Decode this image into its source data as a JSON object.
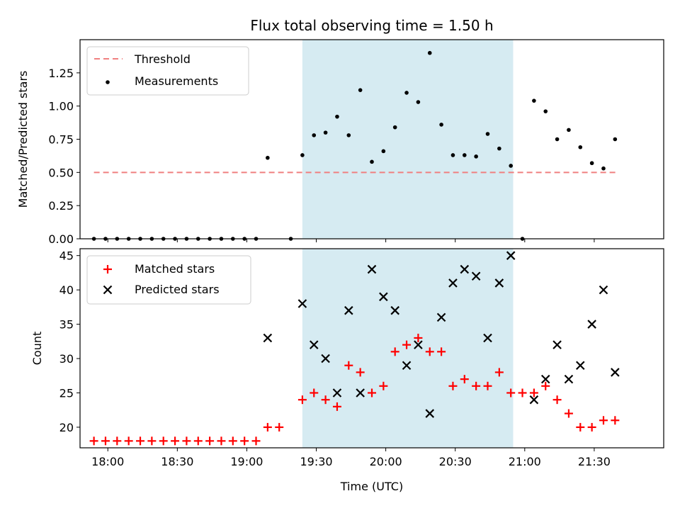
{
  "chart_data": [
    {
      "type": "scatter",
      "title": "Flux total observing time = 1.50 h",
      "xlabel": "",
      "ylabel": "Matched/Predicted stars",
      "xlim": [
        "17:48",
        "22:00"
      ],
      "ylim": [
        0,
        1.5
      ],
      "yticks": [
        "0.00",
        "0.25",
        "0.50",
        "0.75",
        "1.00",
        "1.25"
      ],
      "shaded_x": [
        "19:24",
        "20:55"
      ],
      "legend": "top-left",
      "threshold": {
        "name": "Threshold",
        "value": 0.5,
        "x": [
          "17:54",
          "21:40"
        ],
        "color": "#f08080"
      },
      "series": [
        {
          "name": "Measurements",
          "color": "#000000",
          "points": [
            [
              "17:54",
              0
            ],
            [
              "17:59",
              0
            ],
            [
              "18:04",
              0
            ],
            [
              "18:09",
              0
            ],
            [
              "18:14",
              0
            ],
            [
              "18:19",
              0
            ],
            [
              "18:24",
              0
            ],
            [
              "18:29",
              0
            ],
            [
              "18:34",
              0
            ],
            [
              "18:39",
              0
            ],
            [
              "18:44",
              0
            ],
            [
              "18:49",
              0
            ],
            [
              "18:54",
              0
            ],
            [
              "18:59",
              0
            ],
            [
              "19:04",
              0
            ],
            [
              "19:09",
              0.61
            ],
            [
              "19:19",
              0
            ],
            [
              "19:24",
              0.63
            ],
            [
              "19:29",
              0.78
            ],
            [
              "19:34",
              0.8
            ],
            [
              "19:39",
              0.92
            ],
            [
              "19:44",
              0.78
            ],
            [
              "19:49",
              1.12
            ],
            [
              "19:54",
              0.58
            ],
            [
              "19:59",
              0.66
            ],
            [
              "20:04",
              0.84
            ],
            [
              "20:09",
              1.1
            ],
            [
              "20:14",
              1.03
            ],
            [
              "20:19",
              1.4
            ],
            [
              "20:24",
              0.86
            ],
            [
              "20:29",
              0.63
            ],
            [
              "20:34",
              0.63
            ],
            [
              "20:39",
              0.62
            ],
            [
              "20:44",
              0.79
            ],
            [
              "20:49",
              0.68
            ],
            [
              "20:54",
              0.55
            ],
            [
              "20:59",
              0
            ],
            [
              "21:04",
              1.04
            ],
            [
              "21:09",
              0.96
            ],
            [
              "21:14",
              0.75
            ],
            [
              "21:19",
              0.82
            ],
            [
              "21:24",
              0.69
            ],
            [
              "21:29",
              0.57
            ],
            [
              "21:34",
              0.53
            ],
            [
              "21:39",
              0.75
            ]
          ]
        }
      ]
    },
    {
      "type": "scatter",
      "title": "",
      "xlabel": "Time (UTC)",
      "ylabel": "Count",
      "xlim": [
        "17:48",
        "22:00"
      ],
      "ylim": [
        17,
        46
      ],
      "xticks": [
        "18:00",
        "18:30",
        "19:00",
        "19:30",
        "20:00",
        "20:30",
        "21:00",
        "21:30"
      ],
      "yticks": [
        "20",
        "25",
        "30",
        "35",
        "40",
        "45"
      ],
      "shaded_x": [
        "19:24",
        "20:55"
      ],
      "legend": "top-left",
      "series": [
        {
          "name": "Matched stars",
          "marker": "plus",
          "color": "#ff0000",
          "points": [
            [
              "17:54",
              18
            ],
            [
              "17:59",
              18
            ],
            [
              "18:04",
              18
            ],
            [
              "18:09",
              18
            ],
            [
              "18:14",
              18
            ],
            [
              "18:19",
              18
            ],
            [
              "18:24",
              18
            ],
            [
              "18:29",
              18
            ],
            [
              "18:34",
              18
            ],
            [
              "18:39",
              18
            ],
            [
              "18:44",
              18
            ],
            [
              "18:49",
              18
            ],
            [
              "18:54",
              18
            ],
            [
              "18:59",
              18
            ],
            [
              "19:04",
              18
            ],
            [
              "19:09",
              20
            ],
            [
              "19:14",
              20
            ],
            [
              "19:24",
              24
            ],
            [
              "19:29",
              25
            ],
            [
              "19:34",
              24
            ],
            [
              "19:39",
              23
            ],
            [
              "19:44",
              29
            ],
            [
              "19:49",
              28
            ],
            [
              "19:54",
              25
            ],
            [
              "19:59",
              26
            ],
            [
              "20:04",
              31
            ],
            [
              "20:09",
              32
            ],
            [
              "20:14",
              33
            ],
            [
              "20:19",
              31
            ],
            [
              "20:24",
              31
            ],
            [
              "20:29",
              26
            ],
            [
              "20:34",
              27
            ],
            [
              "20:39",
              26
            ],
            [
              "20:44",
              26
            ],
            [
              "20:49",
              28
            ],
            [
              "20:54",
              25
            ],
            [
              "20:59",
              25
            ],
            [
              "21:04",
              25
            ],
            [
              "21:09",
              26
            ],
            [
              "21:14",
              24
            ],
            [
              "21:19",
              22
            ],
            [
              "21:24",
              20
            ],
            [
              "21:29",
              20
            ],
            [
              "21:34",
              21
            ],
            [
              "21:39",
              21
            ]
          ]
        },
        {
          "name": "Predicted stars",
          "marker": "x",
          "color": "#000000",
          "points": [
            [
              "19:09",
              33
            ],
            [
              "19:24",
              38
            ],
            [
              "19:29",
              32
            ],
            [
              "19:34",
              30
            ],
            [
              "19:39",
              25
            ],
            [
              "19:44",
              37
            ],
            [
              "19:49",
              25
            ],
            [
              "19:54",
              43
            ],
            [
              "19:59",
              39
            ],
            [
              "20:04",
              37
            ],
            [
              "20:09",
              29
            ],
            [
              "20:14",
              32
            ],
            [
              "20:19",
              22
            ],
            [
              "20:24",
              36
            ],
            [
              "20:29",
              41
            ],
            [
              "20:34",
              43
            ],
            [
              "20:39",
              42
            ],
            [
              "20:44",
              33
            ],
            [
              "20:49",
              41
            ],
            [
              "20:54",
              45
            ],
            [
              "21:04",
              24
            ],
            [
              "21:09",
              27
            ],
            [
              "21:14",
              32
            ],
            [
              "21:19",
              27
            ],
            [
              "21:24",
              29
            ],
            [
              "21:29",
              35
            ],
            [
              "21:34",
              40
            ],
            [
              "21:39",
              28
            ]
          ]
        }
      ]
    }
  ]
}
